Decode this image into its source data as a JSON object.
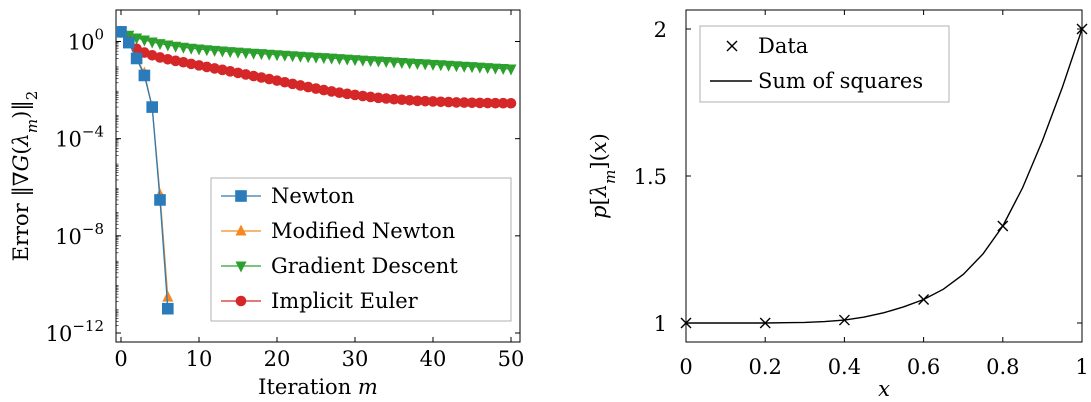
{
  "chart_data": [
    {
      "type": "line",
      "xlabel": "Iteration m",
      "ylabel": "Error ‖∇G(λm)‖2",
      "y_scale": "log",
      "xlim": [
        0,
        50
      ],
      "ylim": [
        1e-12,
        10
      ],
      "x_ticks": [
        "0",
        "10",
        "20",
        "30",
        "40",
        "50"
      ],
      "y_ticks": [
        "10^0",
        "10^-4",
        "10^-8",
        "10^-12"
      ],
      "grid": false,
      "legend_position": "bottom-right",
      "series": [
        {
          "name": "Newton",
          "color": "#2b7bba",
          "marker": "square",
          "x": [
            0,
            1,
            2,
            3,
            4,
            5,
            6
          ],
          "y": [
            2.5,
            0.9,
            0.2,
            0.04,
            0.002,
            3e-07,
            1e-11
          ]
        },
        {
          "name": "Modified Newton",
          "color": "#f5891f",
          "marker": "triangle-up",
          "x": [
            0,
            1,
            2,
            3,
            4,
            5,
            6
          ],
          "y": [
            2.5,
            0.9,
            0.2,
            0.05,
            0.002,
            5e-07,
            3e-11
          ]
        },
        {
          "name": "Gradient Descent",
          "color": "#2ca02c",
          "marker": "triangle-down",
          "x": [
            0,
            1,
            2,
            3,
            4,
            5,
            6,
            7,
            8,
            9,
            10,
            11,
            12,
            13,
            14,
            15,
            16,
            17,
            18,
            19,
            20,
            21,
            22,
            23,
            24,
            25,
            26,
            27,
            28,
            29,
            30,
            31,
            32,
            33,
            34,
            35,
            36,
            37,
            38,
            39,
            40,
            41,
            42,
            43,
            44,
            45,
            46,
            47,
            48,
            49,
            50
          ],
          "y": [
            2.5,
            1.8,
            1.4,
            1.15,
            0.95,
            0.82,
            0.72,
            0.64,
            0.58,
            0.53,
            0.49,
            0.46,
            0.43,
            0.405,
            0.385,
            0.365,
            0.345,
            0.33,
            0.315,
            0.3,
            0.285,
            0.272,
            0.26,
            0.248,
            0.237,
            0.226,
            0.216,
            0.206,
            0.197,
            0.188,
            0.18,
            0.172,
            0.164,
            0.157,
            0.15,
            0.143,
            0.137,
            0.131,
            0.125,
            0.12,
            0.115,
            0.11,
            0.105,
            0.1,
            0.096,
            0.092,
            0.088,
            0.084,
            0.08,
            0.077,
            0.074
          ]
        },
        {
          "name": "Implicit Euler",
          "color": "#d62728",
          "marker": "circle",
          "x": [
            0,
            1,
            2,
            3,
            4,
            5,
            6,
            7,
            8,
            9,
            10,
            11,
            12,
            13,
            14,
            15,
            16,
            17,
            18,
            19,
            20,
            21,
            22,
            23,
            24,
            25,
            26,
            27,
            28,
            29,
            30,
            31,
            32,
            33,
            34,
            35,
            36,
            37,
            38,
            39,
            40,
            41,
            42,
            43,
            44,
            45,
            46,
            47,
            48,
            49,
            50
          ],
          "y": [
            2.5,
            1.0,
            0.5,
            0.35,
            0.27,
            0.22,
            0.185,
            0.16,
            0.14,
            0.12,
            0.104,
            0.09,
            0.078,
            0.068,
            0.059,
            0.051,
            0.044,
            0.038,
            0.033,
            0.0285,
            0.0245,
            0.021,
            0.018,
            0.0155,
            0.0133,
            0.0115,
            0.01,
            0.0088,
            0.0078,
            0.007,
            0.0063,
            0.0057,
            0.0052,
            0.0048,
            0.0045,
            0.0042,
            0.004,
            0.0038,
            0.0036,
            0.0035,
            0.0034,
            0.0033,
            0.0032,
            0.0031,
            0.00305,
            0.003,
            0.00296,
            0.00293,
            0.0029,
            0.00288,
            0.00287
          ]
        }
      ]
    },
    {
      "type": "line",
      "xlabel": "x",
      "ylabel": "p[λm](x)",
      "xlim": [
        0,
        1
      ],
      "ylim": [
        0.95,
        2.05
      ],
      "x_ticks": [
        "0",
        "0.2",
        "0.4",
        "0.6",
        "0.8",
        "1"
      ],
      "y_ticks": [
        "1",
        "1.5",
        "2"
      ],
      "grid": false,
      "legend_position": "top-left",
      "series": [
        {
          "name": "Data",
          "marker": "x",
          "x": [
            0,
            0.2,
            0.4,
            0.6,
            0.8,
            1.0
          ],
          "y": [
            1.0,
            1.0,
            1.01,
            1.08,
            1.33,
            2.0
          ]
        },
        {
          "name": "Sum of squares",
          "marker": "none",
          "x": [
            0,
            0.05,
            0.1,
            0.15,
            0.2,
            0.25,
            0.3,
            0.35,
            0.4,
            0.45,
            0.5,
            0.55,
            0.6,
            0.65,
            0.7,
            0.75,
            0.8,
            0.85,
            0.9,
            0.95,
            1.0
          ],
          "y": [
            1.0,
            1.0,
            1.0,
            1.0,
            1.0,
            1.001,
            1.002,
            1.005,
            1.01,
            1.02,
            1.035,
            1.055,
            1.08,
            1.115,
            1.165,
            1.235,
            1.33,
            1.46,
            1.62,
            1.8,
            2.0
          ]
        }
      ]
    }
  ]
}
